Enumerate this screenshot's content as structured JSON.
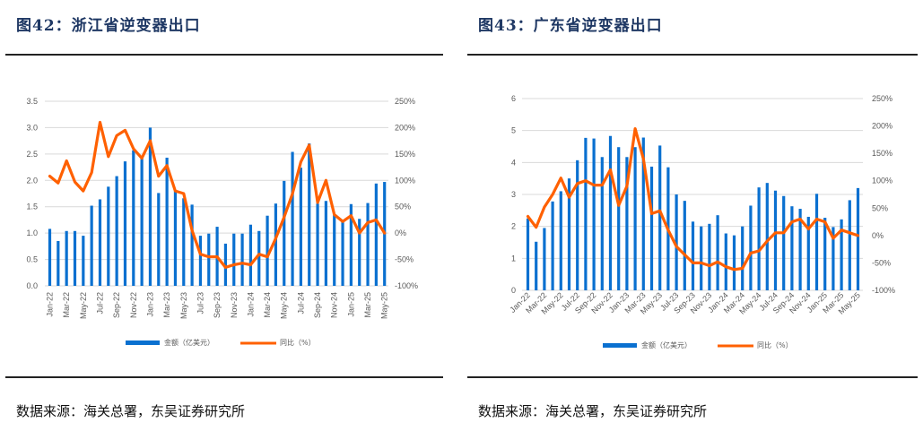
{
  "figures": [
    {
      "title": "图42：浙江省逆变器出口",
      "source": "数据来源：海关总署，东吴证券研究所",
      "legend": {
        "bar": "金额（亿美元）",
        "line": "同比（%）"
      }
    },
    {
      "title": "图43：广东省逆变器出口",
      "source": "数据来源：海关总署，东吴证券研究所",
      "legend": {
        "bar": "金额（亿美元）",
        "line": "同比（%）"
      }
    }
  ],
  "colors": {
    "bar": "#0a70d0",
    "line": "#ff6000",
    "grid": "#d9d9d9",
    "title": "#1f3864"
  },
  "chart_data": [
    {
      "type": "bar+line",
      "title": "图42：浙江省逆变器出口",
      "categories": [
        "Jan-22",
        "Feb-22",
        "Mar-22",
        "Apr-22",
        "May-22",
        "Jun-22",
        "Jul-22",
        "Aug-22",
        "Sep-22",
        "Oct-22",
        "Nov-22",
        "Dec-22",
        "Jan-23",
        "Feb-23",
        "Mar-23",
        "Apr-23",
        "May-23",
        "Jun-23",
        "Jul-23",
        "Aug-23",
        "Sep-23",
        "Oct-23",
        "Nov-23",
        "Dec-23",
        "Jan-24",
        "Feb-24",
        "Mar-24",
        "Apr-24",
        "May-24",
        "Jun-24",
        "Jul-24",
        "Aug-24",
        "Sep-24",
        "Oct-24",
        "Nov-24",
        "Dec-24",
        "Jan-25",
        "Feb-25",
        "Mar-25",
        "Apr-25",
        "May-25"
      ],
      "tick_labels": [
        "Jan-22",
        "Mar-22",
        "May-22",
        "Jul-22",
        "Sep-22",
        "Nov-22",
        "Jan-23",
        "Mar-23",
        "May-23",
        "Jul-23",
        "Sep-23",
        "Nov-23",
        "Jan-24",
        "Mar-24",
        "May-24",
        "Jul-24",
        "Sep-24",
        "Nov-24",
        "Jan-25",
        "Mar-25",
        "May-25"
      ],
      "tick_rotation": -90,
      "series": [
        {
          "name": "金额（亿美元）",
          "type": "bar",
          "axis": "left",
          "values": [
            1.08,
            0.85,
            1.04,
            1.04,
            0.95,
            1.52,
            1.64,
            1.88,
            2.08,
            2.36,
            2.57,
            2.45,
            3.0,
            1.76,
            2.43,
            1.8,
            1.66,
            1.54,
            0.95,
            0.99,
            1.12,
            0.8,
            0.99,
            0.99,
            1.16,
            1.04,
            1.33,
            1.56,
            1.99,
            2.54,
            2.24,
            2.7,
            1.56,
            1.61,
            1.34,
            1.21,
            1.55,
            1.27,
            1.57,
            1.94,
            1.97
          ]
        },
        {
          "name": "同比（%）",
          "type": "line",
          "axis": "right",
          "values": [
            108,
            95,
            137,
            97,
            80,
            115,
            210,
            145,
            185,
            195,
            160,
            142,
            175,
            108,
            128,
            80,
            75,
            5,
            -40,
            -45,
            -45,
            -65,
            -60,
            -57,
            -60,
            -40,
            -45,
            -10,
            30,
            75,
            135,
            167,
            58,
            100,
            35,
            22,
            33,
            0,
            20,
            25,
            0
          ]
        }
      ],
      "y_left": {
        "min": 0,
        "max": 3.5,
        "step": 0.5,
        "ticks": [
          "0.0",
          "0.5",
          "1.0",
          "1.5",
          "2.0",
          "2.5",
          "3.0",
          "3.5"
        ]
      },
      "y_right": {
        "min": -100,
        "max": 250,
        "step": 50,
        "ticks": [
          "-100%",
          "-50%",
          "0%",
          "50%",
          "100%",
          "150%",
          "200%",
          "250%"
        ]
      },
      "grid": true,
      "legend_position": "bottom"
    },
    {
      "type": "bar+line",
      "title": "图43：广东省逆变器出口",
      "categories": [
        "Jan-22",
        "Feb-22",
        "Mar-22",
        "Apr-22",
        "May-22",
        "Jun-22",
        "Jul-22",
        "Aug-22",
        "Sep-22",
        "Oct-22",
        "Nov-22",
        "Dec-22",
        "Jan-23",
        "Feb-23",
        "Mar-23",
        "Apr-23",
        "May-23",
        "Jun-23",
        "Jul-23",
        "Aug-23",
        "Sep-23",
        "Oct-23",
        "Nov-23",
        "Dec-23",
        "Jan-24",
        "Feb-24",
        "Mar-24",
        "Apr-24",
        "May-24",
        "Jun-24",
        "Jul-24",
        "Aug-24",
        "Sep-24",
        "Oct-24",
        "Nov-24",
        "Dec-24",
        "Jan-25",
        "Feb-25",
        "Mar-25",
        "Apr-25",
        "May-25"
      ],
      "tick_labels": [
        "Jan-22",
        "Mar-22",
        "May-22",
        "Jul-22",
        "Sep-22",
        "Nov-22",
        "Jan-23",
        "Mar-23",
        "May-23",
        "Jul-23",
        "Sep-23",
        "Nov-23",
        "Jan-24",
        "Mar-24",
        "May-24",
        "Jul-24",
        "Sep-24",
        "Nov-24",
        "Jan-25",
        "Mar-25",
        "May-25"
      ],
      "tick_rotation": -45,
      "series": [
        {
          "name": "金额（亿美元）",
          "type": "bar",
          "axis": "left",
          "values": [
            2.25,
            1.52,
            1.95,
            2.78,
            3.1,
            3.5,
            4.07,
            4.77,
            4.75,
            4.17,
            4.83,
            4.48,
            4.17,
            4.48,
            4.78,
            3.87,
            4.53,
            3.85,
            3.0,
            2.8,
            2.15,
            2.0,
            2.08,
            2.35,
            1.78,
            1.72,
            2.0,
            2.65,
            3.22,
            3.36,
            3.12,
            2.95,
            2.63,
            2.55,
            2.3,
            3.02,
            2.27,
            1.98,
            2.22,
            2.82,
            3.2
          ]
        },
        {
          "name": "同比（%）",
          "type": "line",
          "axis": "right",
          "values": [
            35,
            15,
            52,
            75,
            105,
            70,
            95,
            100,
            92,
            92,
            120,
            55,
            90,
            195,
            140,
            40,
            45,
            10,
            -20,
            -35,
            -50,
            -50,
            -55,
            -48,
            -57,
            -62,
            -60,
            -32,
            -28,
            -10,
            5,
            5,
            25,
            30,
            12,
            30,
            25,
            -5,
            10,
            5,
            0
          ]
        }
      ],
      "y_left": {
        "min": 0,
        "max": 6,
        "step": 1,
        "ticks": [
          "0",
          "1",
          "2",
          "3",
          "4",
          "5",
          "6"
        ]
      },
      "y_right": {
        "min": -100,
        "max": 250,
        "step": 50,
        "ticks": [
          "-100%",
          "-50%",
          "0%",
          "50%",
          "100%",
          "150%",
          "200%",
          "250%"
        ]
      },
      "grid": true,
      "legend_position": "bottom"
    }
  ]
}
